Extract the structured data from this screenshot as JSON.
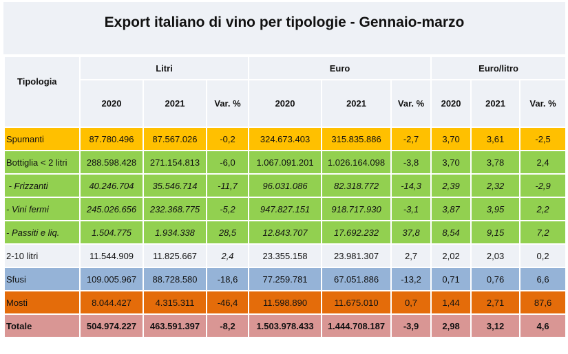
{
  "title": "Export italiano di vino per tipologie - Gennaio-marzo",
  "header": {
    "tipologia": "Tipologia",
    "groups": [
      "Litri",
      "Euro",
      "Euro/litro"
    ],
    "subcols": [
      "2020",
      "2021",
      "Var. %",
      "2020",
      "2021",
      "Var. %",
      "2020",
      "2021",
      "Var. %"
    ]
  },
  "rows": [
    {
      "label": "Spumanti",
      "cells": [
        "87.780.496",
        "87.567.026",
        "-0,2",
        "324.673.403",
        "315.835.886",
        "-2,7",
        "3,70",
        "3,61",
        "-2,5"
      ],
      "color": "#ffc000"
    },
    {
      "label": "Bottiglia < 2 litri",
      "cells": [
        "288.598.428",
        "271.154.813",
        "-6,0",
        "1.067.091.201",
        "1.026.164.098",
        "-3,8",
        "3,70",
        "3,78",
        "2,4"
      ],
      "color": "#92d050"
    },
    {
      "label": " - Frizzanti",
      "cells": [
        "40.246.704",
        "35.546.714",
        "-11,7",
        "96.031.086",
        "82.318.772",
        "-14,3",
        "2,39",
        "2,32",
        "-2,9"
      ],
      "color": "#92d050"
    },
    {
      "label": "- Vini fermi",
      "cells": [
        "245.026.656",
        "232.368.775",
        "-5,2",
        "947.827.151",
        "918.717.930",
        "-3,1",
        "3,87",
        "3,95",
        "2,2"
      ],
      "color": "#92d050"
    },
    {
      "label": "- Passiti e liq.",
      "cells": [
        "1.504.775",
        "1.934.338",
        "28,5",
        "12.843.707",
        "17.692.232",
        "37,8",
        "8,54",
        "9,15",
        "7,2"
      ],
      "color": "#92d050"
    },
    {
      "label": "2-10 litri",
      "cells": [
        "11.544.909",
        "11.825.667",
        "2,4",
        "23.355.158",
        "23.981.307",
        "2,7",
        "2,02",
        "2,03",
        "0,2"
      ],
      "color": "#eef1f6"
    },
    {
      "label": "Sfusi",
      "cells": [
        "109.005.967",
        "88.728.580",
        "-18,6",
        "77.259.781",
        "67.051.886",
        "-13,2",
        "0,71",
        "0,76",
        "6,6"
      ],
      "color": "#95b3d7"
    },
    {
      "label": "Mosti",
      "cells": [
        "8.044.427",
        "4.315.311",
        "-46,4",
        "11.598.890",
        "11.675.010",
        "0,7",
        "1,44",
        "2,71",
        "87,6"
      ],
      "color": "#e46c0a"
    },
    {
      "label": "Totale",
      "cells": [
        "504.974.227",
        "463.591.397",
        "-8,2",
        "1.503.978.433",
        "1.444.708.187",
        "-3,9",
        "2,98",
        "3,12",
        "4,6"
      ],
      "color": "#d99694"
    }
  ]
}
